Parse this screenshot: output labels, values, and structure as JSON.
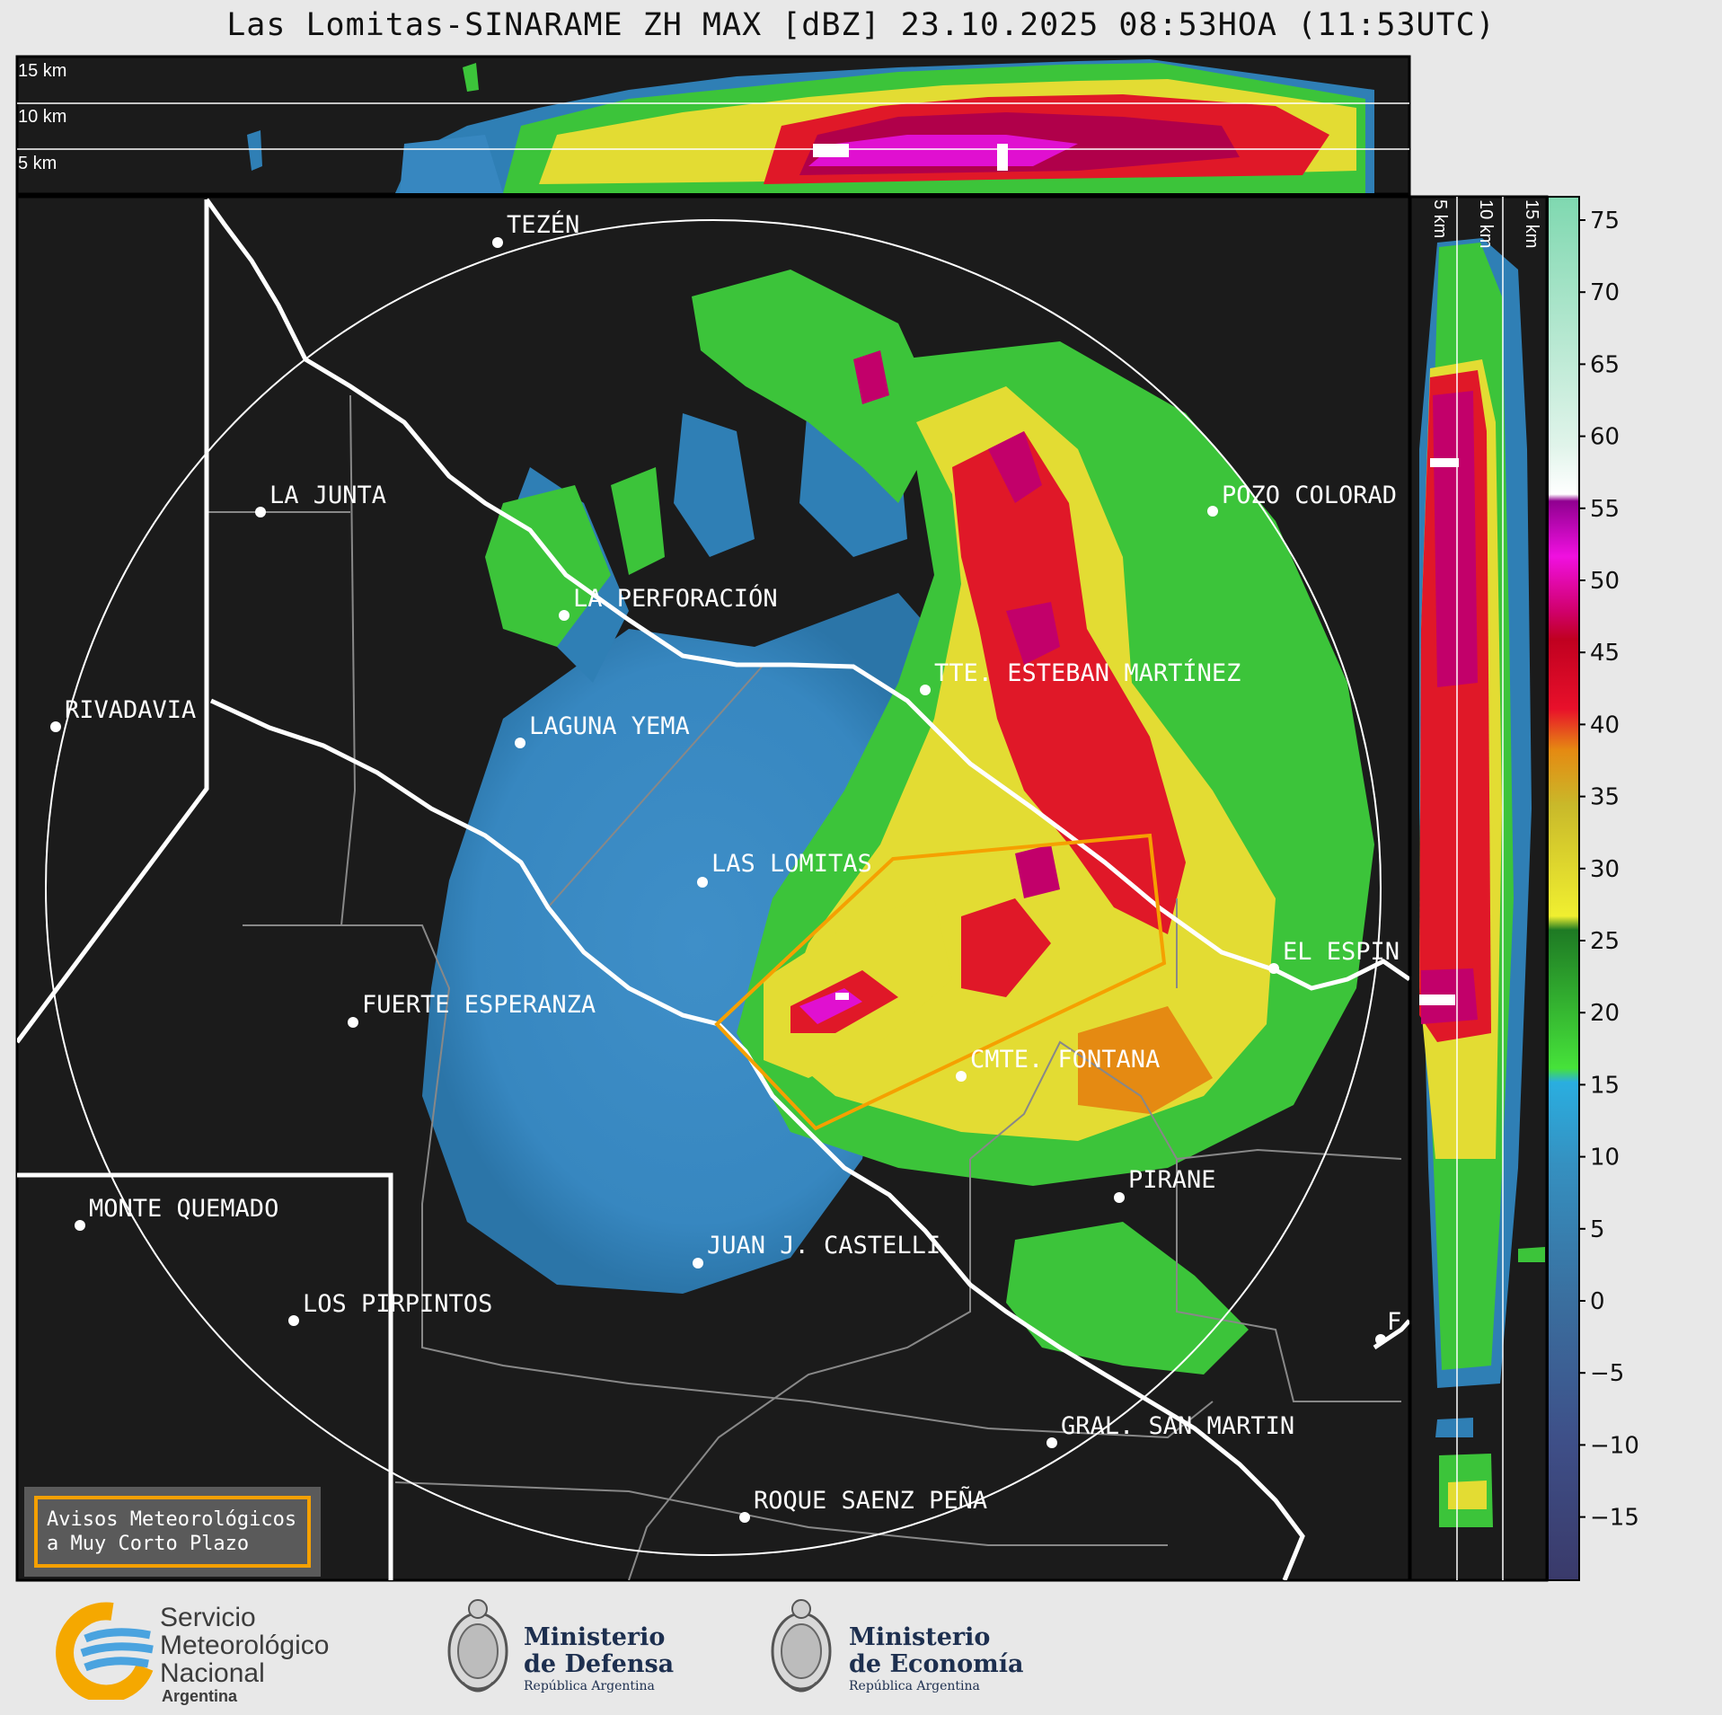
{
  "title": "Las Lomitas-SINARAME ZH MAX [dBZ] 23.10.2025 08:53HOA (11:53UTC)",
  "altitude_top": [
    "15 km",
    "10 km",
    "5 km"
  ],
  "altitude_side": [
    "5 km",
    "10 km",
    "15 km"
  ],
  "colorbar": {
    "ticks": [
      "75",
      "70",
      "65",
      "60",
      "55",
      "50",
      "45",
      "40",
      "35",
      "30",
      "25",
      "20",
      "15",
      "10",
      "5",
      "0",
      "−5",
      "−10",
      "−15"
    ]
  },
  "places": [
    {
      "id": "tezen",
      "name": "TEZÉN"
    },
    {
      "id": "la-junta",
      "name": "LA JUNTA"
    },
    {
      "id": "pozo-colorado",
      "name": "POZO COLORAD"
    },
    {
      "id": "la-perforacion",
      "name": "LA PERFORACIÓN"
    },
    {
      "id": "rivadavia",
      "name": "RIVADAVIA"
    },
    {
      "id": "tte-esteban-martinez",
      "name": "TTE. ESTEBAN MARTÍNEZ"
    },
    {
      "id": "laguna-yema",
      "name": "LAGUNA YEMA"
    },
    {
      "id": "las-lomitas",
      "name": "LAS LOMITAS"
    },
    {
      "id": "el-espin",
      "name": "EL ESPIN"
    },
    {
      "id": "fuerte-esperanza",
      "name": "FUERTE ESPERANZA"
    },
    {
      "id": "cmte-fontana",
      "name": "CMTE. FONTANA"
    },
    {
      "id": "pirane",
      "name": "PIRANE"
    },
    {
      "id": "monte-quemado",
      "name": "MONTE QUEMADO"
    },
    {
      "id": "juan-j-castelli",
      "name": "JUAN J. CASTELLI"
    },
    {
      "id": "los-pirpintos",
      "name": "LOS PIRPINTOS"
    },
    {
      "id": "gral-san-martin",
      "name": "GRAL. SAN MARTIN"
    },
    {
      "id": "roque-saenz-pena",
      "name": "ROQUE SAENZ PEÑA"
    },
    {
      "id": "f-edge",
      "name": "F"
    }
  ],
  "warning_box": [
    "Avisos Meteorológicos",
    "a Muy Corto Plazo"
  ],
  "logos": {
    "smn": [
      "Servicio",
      "Meteorológico",
      "Nacional",
      "Argentina"
    ],
    "defensa": [
      "Ministerio",
      "de Defensa",
      "República Argentina"
    ],
    "economia": [
      "Ministerio",
      "de Economía",
      "República Argentina"
    ]
  },
  "colors": {
    "map_bg": "#1b1b1b",
    "frame": "#000000",
    "warning_polygon": "#f5a000",
    "smn_blue": "#4aa3df",
    "smn_yellow": "#f5a800"
  }
}
